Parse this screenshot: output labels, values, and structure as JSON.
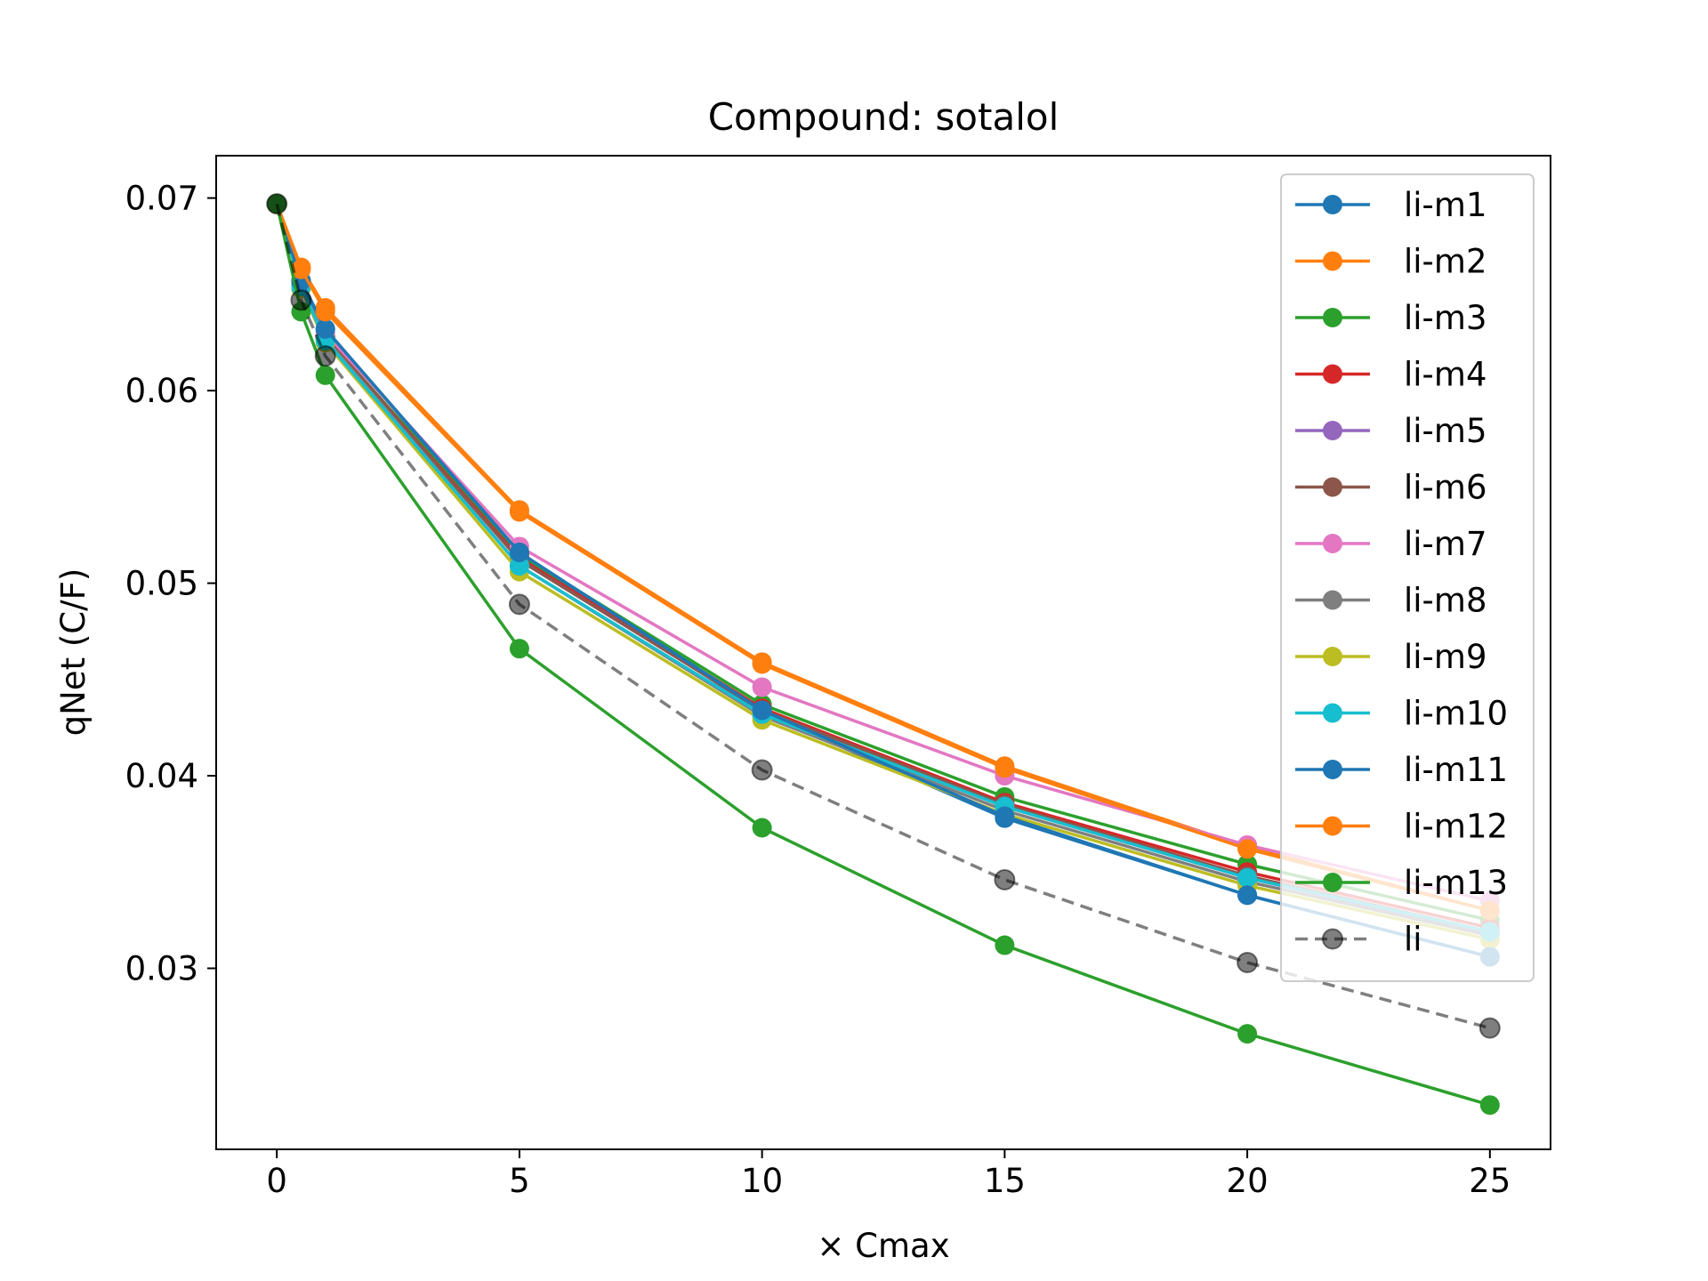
{
  "chart_data": {
    "type": "line",
    "title": "Compound: sotalol",
    "xlabel": "× Cmax",
    "ylabel": "qNet (C/F)",
    "x": [
      0,
      0.5,
      1,
      5,
      10,
      15,
      20,
      25
    ],
    "xlim": [
      -1.25,
      26.25
    ],
    "ylim": [
      0.0206,
      0.0722
    ],
    "xticks": [
      0,
      5,
      10,
      15,
      20,
      25
    ],
    "xtick_labels": [
      "0",
      "5",
      "10",
      "15",
      "20",
      "25"
    ],
    "yticks": [
      0.03,
      0.04,
      0.05,
      0.06,
      0.07
    ],
    "ytick_labels": [
      "0.03",
      "0.04",
      "0.05",
      "0.06",
      "0.07"
    ],
    "grid": false,
    "legend_position": "upper-right",
    "series": [
      {
        "name": "li-m1",
        "color": "#1f77b4",
        "dashed": false,
        "values": [
          0.0697,
          0.0657,
          0.0632,
          0.0515,
          0.0433,
          0.0378,
          0.0338,
          0.0306
        ]
      },
      {
        "name": "li-m2",
        "color": "#ff7f0e",
        "dashed": false,
        "values": [
          0.0697,
          0.0664,
          0.0643,
          0.0538,
          0.0459,
          0.0405,
          0.0363,
          0.033
        ]
      },
      {
        "name": "li-m3",
        "color": "#2ca02c",
        "dashed": false,
        "values": [
          0.0697,
          0.0655,
          0.0628,
          0.0515,
          0.0437,
          0.0389,
          0.0354,
          0.0325
        ]
      },
      {
        "name": "li-m4",
        "color": "#d62728",
        "dashed": false,
        "values": [
          0.0697,
          0.0655,
          0.0628,
          0.0513,
          0.0435,
          0.0386,
          0.035,
          0.0321
        ]
      },
      {
        "name": "li-m5",
        "color": "#9467bd",
        "dashed": false,
        "values": [
          0.0697,
          0.0655,
          0.0628,
          0.0512,
          0.0434,
          0.0384,
          0.0347,
          0.0318
        ]
      },
      {
        "name": "li-m6",
        "color": "#8c564b",
        "dashed": false,
        "values": [
          0.0697,
          0.0655,
          0.0628,
          0.0512,
          0.0434,
          0.0385,
          0.0348,
          0.0319
        ]
      },
      {
        "name": "li-m7",
        "color": "#e377c2",
        "dashed": false,
        "values": [
          0.0697,
          0.0656,
          0.063,
          0.0519,
          0.0446,
          0.04,
          0.0364,
          0.0335
        ]
      },
      {
        "name": "li-m8",
        "color": "#7f7f7f",
        "dashed": false,
        "values": [
          0.0697,
          0.0655,
          0.0627,
          0.0509,
          0.0431,
          0.0382,
          0.0345,
          0.0317
        ]
      },
      {
        "name": "li-m9",
        "color": "#bcbd22",
        "dashed": false,
        "values": [
          0.0697,
          0.0653,
          0.0625,
          0.0506,
          0.0429,
          0.038,
          0.0343,
          0.0315
        ]
      },
      {
        "name": "li-m10",
        "color": "#17becf",
        "dashed": false,
        "values": [
          0.0697,
          0.0654,
          0.0626,
          0.0509,
          0.0432,
          0.0384,
          0.0347,
          0.0319
        ]
      },
      {
        "name": "li-m11",
        "color": "#1f77b4",
        "dashed": false,
        "values": [
          0.0697,
          0.0657,
          0.0632,
          0.0516,
          0.0434,
          0.0379,
          0.0338,
          0.0306
        ]
      },
      {
        "name": "li-m12",
        "color": "#ff7f0e",
        "dashed": false,
        "values": [
          0.0697,
          0.0663,
          0.0641,
          0.0537,
          0.0458,
          0.0404,
          0.0362,
          0.033
        ]
      },
      {
        "name": "li-m13",
        "color": "#2ca02c",
        "dashed": false,
        "values": [
          0.0697,
          0.0641,
          0.0608,
          0.0466,
          0.0373,
          0.0312,
          0.0266,
          0.0229
        ]
      },
      {
        "name": "li",
        "color": "#000000",
        "dashed": true,
        "values": [
          0.0697,
          0.0647,
          0.0618,
          0.0489,
          0.0403,
          0.0346,
          0.0303,
          0.0269
        ]
      }
    ]
  }
}
